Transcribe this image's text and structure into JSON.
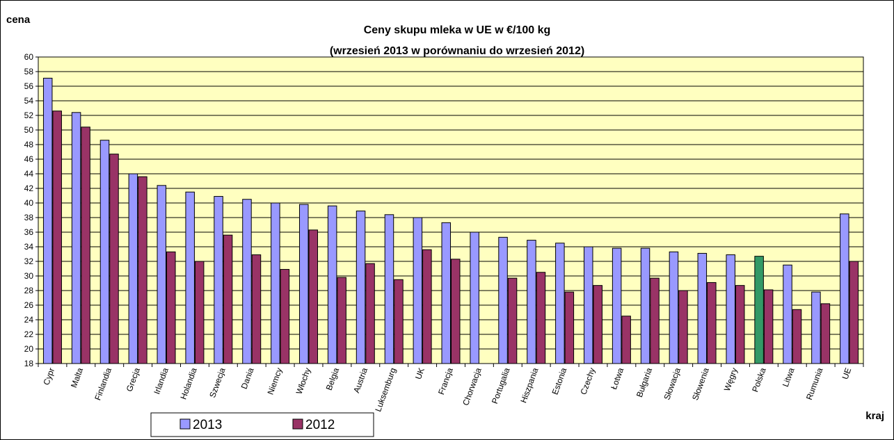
{
  "chart_data": {
    "type": "bar",
    "title": "Ceny skupu mleka w UE w €/100 kg",
    "subtitle": "(wrzesień 2013 w porównaniu do wrzesień 2012)",
    "ylabel": "cena",
    "xlabel": "kraj",
    "ylim": [
      18,
      60
    ],
    "ytick_step": 2,
    "grid": true,
    "legend_position": "bottom-left",
    "colors": {
      "plot_background": "#FFFFC0",
      "series_2013": "#9999FF",
      "series_2012": "#993366",
      "highlight_2013": "#339966"
    },
    "highlight_category": "Polska",
    "categories": [
      "Cypr",
      "Malta",
      "Finlandia",
      "Grecja",
      "Irlandia",
      "Holandia",
      "Szwecja",
      "Dania",
      "Niemcy",
      "Włochy",
      "Belgia",
      "Austria",
      "Luksemburg",
      "UK",
      "Francja",
      "Chorwacja",
      "Portugalia",
      "Hiszpania",
      "Estonia",
      "Czechy",
      "Łotwa",
      "Bułgaria",
      "Słowacja",
      "Słowenia",
      "Węgry",
      "Polska",
      "Litwa",
      "Rumunia",
      "UE"
    ],
    "series": [
      {
        "name": "2013",
        "values": [
          57.1,
          52.4,
          48.6,
          44.0,
          42.4,
          41.5,
          40.9,
          40.5,
          40.0,
          39.8,
          39.6,
          38.9,
          38.4,
          38.0,
          37.3,
          36.0,
          35.3,
          34.9,
          34.5,
          34.0,
          33.8,
          33.8,
          33.3,
          33.1,
          32.9,
          32.7,
          31.5,
          27.8,
          38.5
        ]
      },
      {
        "name": "2012",
        "values": [
          52.6,
          50.4,
          46.7,
          43.6,
          33.3,
          32.0,
          35.6,
          32.9,
          30.9,
          36.3,
          29.8,
          31.7,
          29.5,
          33.6,
          32.3,
          null,
          29.7,
          30.5,
          27.8,
          28.7,
          24.5,
          29.7,
          28.0,
          29.1,
          28.7,
          28.1,
          25.4,
          26.2,
          32.0
        ]
      }
    ]
  }
}
